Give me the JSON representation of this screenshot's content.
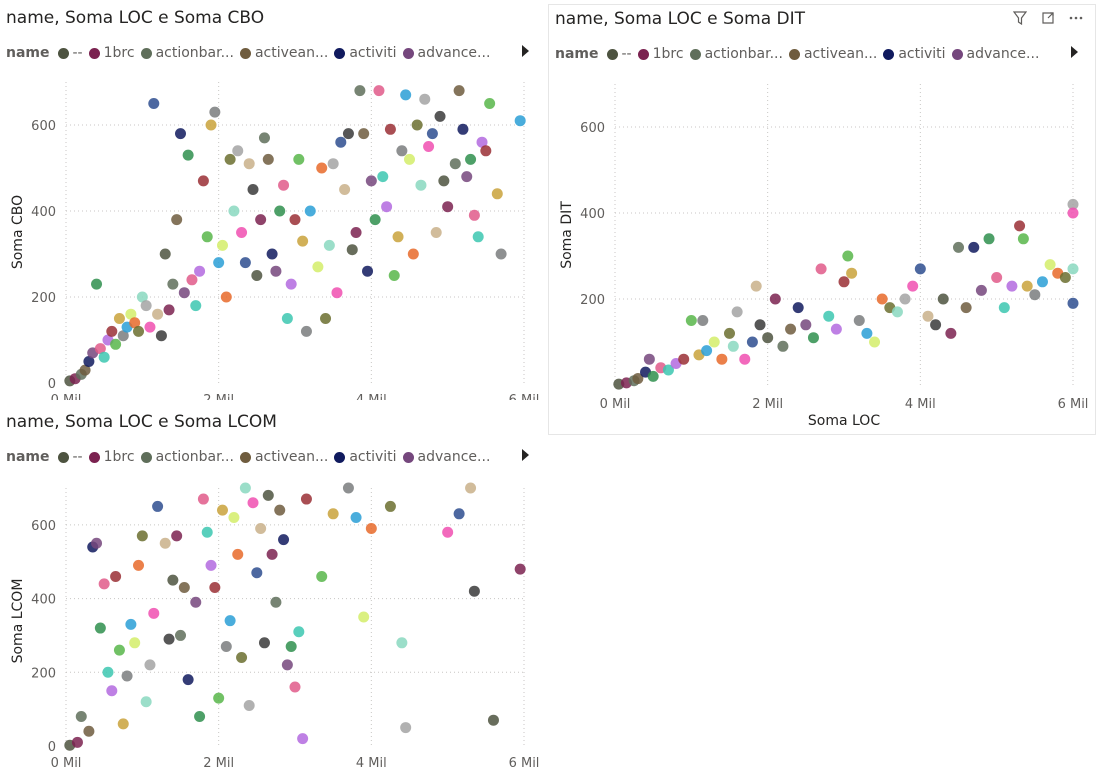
{
  "legend": {
    "title": "name",
    "items": [
      {
        "label": "--",
        "color": "#4d5340"
      },
      {
        "label": "1brc",
        "color": "#7b2250"
      },
      {
        "label": "actionbar...",
        "color": "#5f6e5a"
      },
      {
        "label": "activean...",
        "color": "#6f5c3e"
      },
      {
        "label": "activiti",
        "color": "#101a5e"
      },
      {
        "label": "advance...",
        "color": "#75477d"
      }
    ]
  },
  "header_icons": [
    "filter-icon",
    "focus-mode-icon",
    "more-options-icon"
  ],
  "chart_data": [
    {
      "type": "scatter",
      "title": "name, Soma LOC e Soma CBO",
      "xlabel": "",
      "ylabel": "Soma CBO",
      "xlim": [
        0,
        6000000
      ],
      "ylim": [
        0,
        700
      ],
      "x_ticks": [
        {
          "v": 0,
          "label": "0 Mil"
        },
        {
          "v": 2000000,
          "label": "2 Mil"
        },
        {
          "v": 4000000,
          "label": "4 Mil"
        },
        {
          "v": 6000000,
          "label": "6 Mil"
        }
      ],
      "y_ticks": [
        {
          "v": 0,
          "label": "0"
        },
        {
          "v": 200,
          "label": "200"
        },
        {
          "v": 400,
          "label": "400"
        },
        {
          "v": 600,
          "label": "600"
        }
      ],
      "points": [
        [
          50000,
          5
        ],
        [
          120000,
          10
        ],
        [
          200000,
          20
        ],
        [
          250000,
          30
        ],
        [
          300000,
          50
        ],
        [
          350000,
          70
        ],
        [
          400000,
          230
        ],
        [
          450000,
          80
        ],
        [
          500000,
          60
        ],
        [
          550000,
          100
        ],
        [
          600000,
          120
        ],
        [
          650000,
          90
        ],
        [
          700000,
          150
        ],
        [
          750000,
          110
        ],
        [
          800000,
          130
        ],
        [
          850000,
          160
        ],
        [
          900000,
          140
        ],
        [
          950000,
          120
        ],
        [
          1000000,
          200
        ],
        [
          1050000,
          180
        ],
        [
          1100000,
          130
        ],
        [
          1150000,
          650
        ],
        [
          1200000,
          160
        ],
        [
          1250000,
          110
        ],
        [
          1300000,
          300
        ],
        [
          1350000,
          170
        ],
        [
          1400000,
          230
        ],
        [
          1450000,
          380
        ],
        [
          1500000,
          580
        ],
        [
          1550000,
          210
        ],
        [
          1600000,
          530
        ],
        [
          1650000,
          240
        ],
        [
          1700000,
          180
        ],
        [
          1750000,
          260
        ],
        [
          1800000,
          470
        ],
        [
          1850000,
          340
        ],
        [
          1900000,
          600
        ],
        [
          1950000,
          630
        ],
        [
          2000000,
          280
        ],
        [
          2050000,
          320
        ],
        [
          2100000,
          200
        ],
        [
          2150000,
          520
        ],
        [
          2200000,
          400
        ],
        [
          2250000,
          540
        ],
        [
          2300000,
          350
        ],
        [
          2350000,
          280
        ],
        [
          2400000,
          510
        ],
        [
          2450000,
          450
        ],
        [
          2500000,
          250
        ],
        [
          2550000,
          380
        ],
        [
          2600000,
          570
        ],
        [
          2650000,
          520
        ],
        [
          2700000,
          300
        ],
        [
          2750000,
          260
        ],
        [
          2800000,
          400
        ],
        [
          2850000,
          460
        ],
        [
          2900000,
          150
        ],
        [
          2950000,
          230
        ],
        [
          3000000,
          380
        ],
        [
          3050000,
          520
        ],
        [
          3100000,
          330
        ],
        [
          3150000,
          120
        ],
        [
          3200000,
          400
        ],
        [
          3300000,
          270
        ],
        [
          3350000,
          500
        ],
        [
          3400000,
          150
        ],
        [
          3450000,
          320
        ],
        [
          3500000,
          510
        ],
        [
          3550000,
          210
        ],
        [
          3600000,
          560
        ],
        [
          3650000,
          450
        ],
        [
          3700000,
          580
        ],
        [
          3750000,
          310
        ],
        [
          3800000,
          350
        ],
        [
          3850000,
          680
        ],
        [
          3900000,
          580
        ],
        [
          3950000,
          260
        ],
        [
          4000000,
          470
        ],
        [
          4050000,
          380
        ],
        [
          4100000,
          680
        ],
        [
          4150000,
          480
        ],
        [
          4200000,
          410
        ],
        [
          4250000,
          590
        ],
        [
          4300000,
          250
        ],
        [
          4350000,
          340
        ],
        [
          4400000,
          540
        ],
        [
          4450000,
          670
        ],
        [
          4500000,
          520
        ],
        [
          4550000,
          300
        ],
        [
          4600000,
          600
        ],
        [
          4650000,
          460
        ],
        [
          4700000,
          660
        ],
        [
          4750000,
          550
        ],
        [
          4800000,
          580
        ],
        [
          4850000,
          350
        ],
        [
          4900000,
          620
        ],
        [
          4950000,
          470
        ],
        [
          5000000,
          410
        ],
        [
          5100000,
          510
        ],
        [
          5150000,
          680
        ],
        [
          5200000,
          590
        ],
        [
          5250000,
          480
        ],
        [
          5300000,
          520
        ],
        [
          5350000,
          390
        ],
        [
          5400000,
          340
        ],
        [
          5450000,
          560
        ],
        [
          5500000,
          540
        ],
        [
          5550000,
          650
        ],
        [
          5650000,
          440
        ],
        [
          5700000,
          300
        ],
        [
          5950000,
          610
        ]
      ]
    },
    {
      "type": "scatter",
      "title": "name, Soma LOC e Soma DIT",
      "xlabel": "Soma LOC",
      "ylabel": "Soma DIT",
      "xlim": [
        0,
        6000000
      ],
      "ylim": [
        0,
        700
      ],
      "x_ticks": [
        {
          "v": 0,
          "label": "0 Mil"
        },
        {
          "v": 2000000,
          "label": "2 Mil"
        },
        {
          "v": 4000000,
          "label": "4 Mil"
        },
        {
          "v": 6000000,
          "label": "6 Mil"
        }
      ],
      "y_ticks": [
        {
          "v": 200,
          "label": "200"
        },
        {
          "v": 400,
          "label": "400"
        },
        {
          "v": 600,
          "label": "600"
        }
      ],
      "points": [
        [
          50000,
          2
        ],
        [
          150000,
          5
        ],
        [
          250000,
          10
        ],
        [
          300000,
          15
        ],
        [
          400000,
          30
        ],
        [
          450000,
          60
        ],
        [
          500000,
          20
        ],
        [
          600000,
          40
        ],
        [
          700000,
          35
        ],
        [
          800000,
          50
        ],
        [
          900000,
          60
        ],
        [
          1000000,
          150
        ],
        [
          1100000,
          70
        ],
        [
          1150000,
          150
        ],
        [
          1200000,
          80
        ],
        [
          1300000,
          100
        ],
        [
          1400000,
          60
        ],
        [
          1500000,
          120
        ],
        [
          1550000,
          90
        ],
        [
          1600000,
          170
        ],
        [
          1700000,
          60
        ],
        [
          1800000,
          100
        ],
        [
          1850000,
          230
        ],
        [
          1900000,
          140
        ],
        [
          2000000,
          110
        ],
        [
          2100000,
          200
        ],
        [
          2200000,
          90
        ],
        [
          2300000,
          130
        ],
        [
          2400000,
          180
        ],
        [
          2500000,
          140
        ],
        [
          2600000,
          110
        ],
        [
          2700000,
          270
        ],
        [
          2800000,
          160
        ],
        [
          2900000,
          130
        ],
        [
          3000000,
          240
        ],
        [
          3050000,
          300
        ],
        [
          3100000,
          260
        ],
        [
          3200000,
          150
        ],
        [
          3300000,
          120
        ],
        [
          3400000,
          100
        ],
        [
          3500000,
          200
        ],
        [
          3600000,
          180
        ],
        [
          3700000,
          170
        ],
        [
          3800000,
          200
        ],
        [
          3900000,
          230
        ],
        [
          4000000,
          270
        ],
        [
          4100000,
          160
        ],
        [
          4200000,
          140
        ],
        [
          4300000,
          200
        ],
        [
          4400000,
          120
        ],
        [
          4500000,
          320
        ],
        [
          4600000,
          180
        ],
        [
          4700000,
          320
        ],
        [
          4800000,
          220
        ],
        [
          4900000,
          340
        ],
        [
          5000000,
          250
        ],
        [
          5100000,
          180
        ],
        [
          5200000,
          230
        ],
        [
          5300000,
          370
        ],
        [
          5350000,
          340
        ],
        [
          5400000,
          230
        ],
        [
          5500000,
          210
        ],
        [
          5600000,
          240
        ],
        [
          5700000,
          280
        ],
        [
          5800000,
          260
        ],
        [
          5900000,
          250
        ],
        [
          6000000,
          270
        ],
        [
          6000000,
          420
        ],
        [
          6000000,
          400
        ],
        [
          6000000,
          190
        ]
      ]
    },
    {
      "type": "scatter",
      "title": "name, Soma LOC e Soma LCOM",
      "xlabel": "",
      "ylabel": "Soma LCOM",
      "xlim": [
        0,
        6000000
      ],
      "ylim": [
        0,
        700
      ],
      "x_ticks": [
        {
          "v": 0,
          "label": "0 Mil"
        },
        {
          "v": 2000000,
          "label": "2 Mil"
        },
        {
          "v": 4000000,
          "label": "4 Mil"
        },
        {
          "v": 6000000,
          "label": "6 Mil"
        }
      ],
      "y_ticks": [
        {
          "v": 0,
          "label": "0"
        },
        {
          "v": 200,
          "label": "200"
        },
        {
          "v": 400,
          "label": "400"
        },
        {
          "v": 600,
          "label": "600"
        }
      ],
      "points": [
        [
          50000,
          2
        ],
        [
          150000,
          10
        ],
        [
          200000,
          80
        ],
        [
          300000,
          40
        ],
        [
          350000,
          540
        ],
        [
          400000,
          550
        ],
        [
          450000,
          320
        ],
        [
          500000,
          440
        ],
        [
          550000,
          200
        ],
        [
          600000,
          150
        ],
        [
          650000,
          460
        ],
        [
          700000,
          260
        ],
        [
          750000,
          60
        ],
        [
          800000,
          190
        ],
        [
          850000,
          330
        ],
        [
          900000,
          280
        ],
        [
          950000,
          490
        ],
        [
          1000000,
          570
        ],
        [
          1050000,
          120
        ],
        [
          1100000,
          220
        ],
        [
          1150000,
          360
        ],
        [
          1200000,
          650
        ],
        [
          1300000,
          550
        ],
        [
          1350000,
          290
        ],
        [
          1400000,
          450
        ],
        [
          1450000,
          570
        ],
        [
          1500000,
          300
        ],
        [
          1550000,
          430
        ],
        [
          1600000,
          180
        ],
        [
          1700000,
          390
        ],
        [
          1750000,
          80
        ],
        [
          1800000,
          670
        ],
        [
          1850000,
          580
        ],
        [
          1900000,
          490
        ],
        [
          1950000,
          430
        ],
        [
          2000000,
          130
        ],
        [
          2050000,
          640
        ],
        [
          2100000,
          270
        ],
        [
          2150000,
          340
        ],
        [
          2200000,
          620
        ],
        [
          2250000,
          520
        ],
        [
          2300000,
          240
        ],
        [
          2350000,
          700
        ],
        [
          2400000,
          110
        ],
        [
          2450000,
          660
        ],
        [
          2500000,
          470
        ],
        [
          2550000,
          590
        ],
        [
          2600000,
          280
        ],
        [
          2650000,
          680
        ],
        [
          2700000,
          520
        ],
        [
          2750000,
          390
        ],
        [
          2800000,
          640
        ],
        [
          2850000,
          560
        ],
        [
          2900000,
          220
        ],
        [
          2950000,
          270
        ],
        [
          3000000,
          160
        ],
        [
          3050000,
          310
        ],
        [
          3100000,
          20
        ],
        [
          3150000,
          670
        ],
        [
          3350000,
          460
        ],
        [
          3500000,
          630
        ],
        [
          3700000,
          700
        ],
        [
          3800000,
          620
        ],
        [
          3900000,
          350
        ],
        [
          4000000,
          590
        ],
        [
          4250000,
          650
        ],
        [
          4400000,
          280
        ],
        [
          4450000,
          50
        ],
        [
          5000000,
          580
        ],
        [
          5150000,
          630
        ],
        [
          5300000,
          700
        ],
        [
          5350000,
          420
        ],
        [
          5600000,
          70
        ],
        [
          5950000,
          480
        ]
      ]
    }
  ]
}
